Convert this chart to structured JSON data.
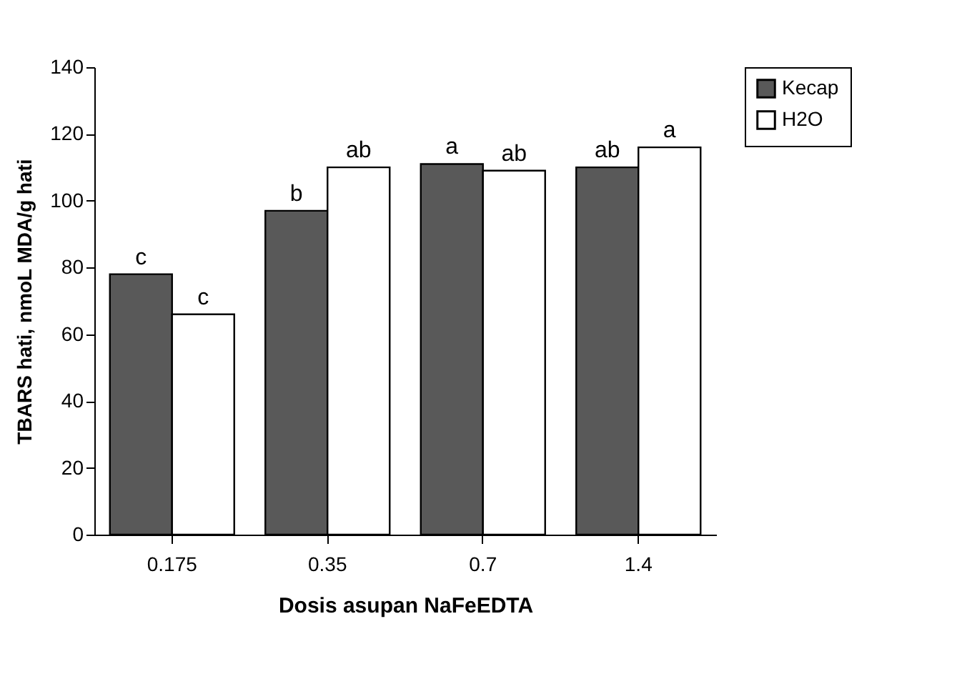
{
  "chart_data": {
    "type": "bar",
    "xlabel": "Dosis asupan NaFeEDTA",
    "ylabel": "TBARS hati, nmoL MDA/g hati",
    "categories": [
      "0.175",
      "0.35",
      "0.7",
      "1.4"
    ],
    "series": [
      {
        "name": "Kecap",
        "color": "#595959",
        "values": [
          78,
          97,
          111,
          110
        ]
      },
      {
        "name": "H2O",
        "color": "#ffffff",
        "values": [
          66,
          110,
          109,
          116
        ]
      }
    ],
    "ylim": [
      0,
      140
    ],
    "yticks": [
      0,
      20,
      40,
      60,
      80,
      100,
      120,
      140
    ],
    "grid": false,
    "legend": "right",
    "annotations": [
      {
        "text": "c",
        "x": "0.175",
        "y": 78
      },
      {
        "text": "c",
        "x": "0.175",
        "y": 66
      },
      {
        "text": "b",
        "x": "0.35",
        "y": 97
      },
      {
        "text": "ab",
        "x": "0.35",
        "y": 110
      },
      {
        "text": "a",
        "x": "0.7",
        "y": 111
      },
      {
        "text": "ab",
        "x": "0.7",
        "y": 109
      },
      {
        "text": "ab",
        "x": "1.4",
        "y": 110
      },
      {
        "text": "a",
        "x": "1.4",
        "y": 116
      }
    ]
  }
}
